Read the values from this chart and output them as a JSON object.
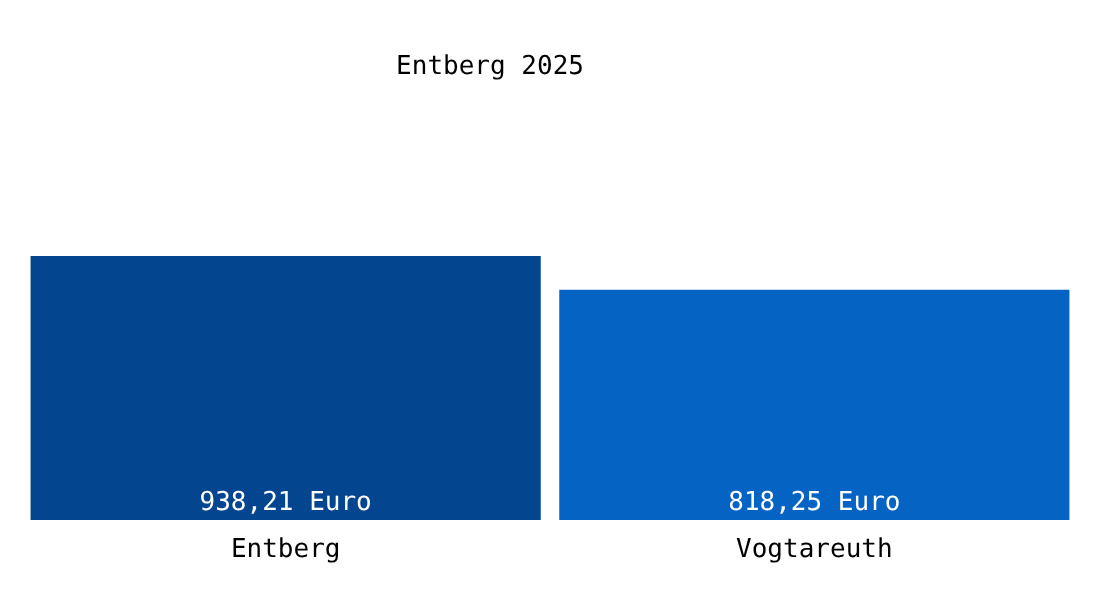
{
  "chart_data": {
    "type": "bar",
    "title": "Entberg 2025",
    "categories": [
      "Entberg",
      "Vogtareuth"
    ],
    "values": [
      938.21,
      818.25
    ],
    "colors": [
      "#03468f",
      "#0563c3"
    ],
    "value_labels": [
      "938,21 Euro",
      "818,25 Euro"
    ],
    "grid": false,
    "legend": false
  }
}
